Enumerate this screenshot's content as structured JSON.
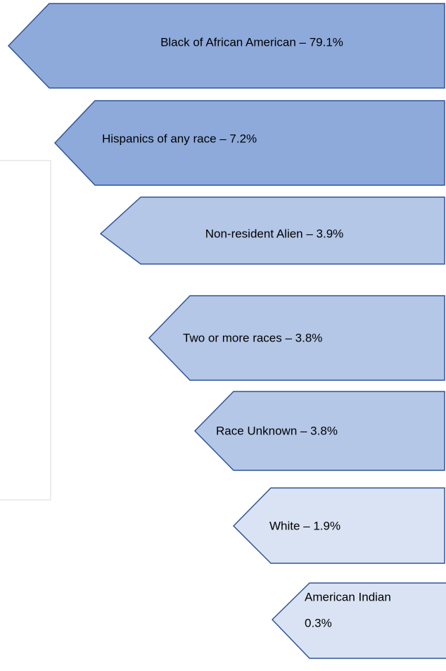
{
  "nodes": [
    {
      "label": "Black of African American – 79.1%"
    },
    {
      "label": "Hispanics of any race – 7.2%"
    },
    {
      "label": "Non-resident Alien – 3.9%"
    },
    {
      "label": "Two or more races – 3.8%"
    },
    {
      "label": "Race Unknown – 3.8%"
    },
    {
      "label": "White – 1.9%"
    },
    {
      "lines": [
        "American Indian",
        "0.3%"
      ]
    }
  ]
}
